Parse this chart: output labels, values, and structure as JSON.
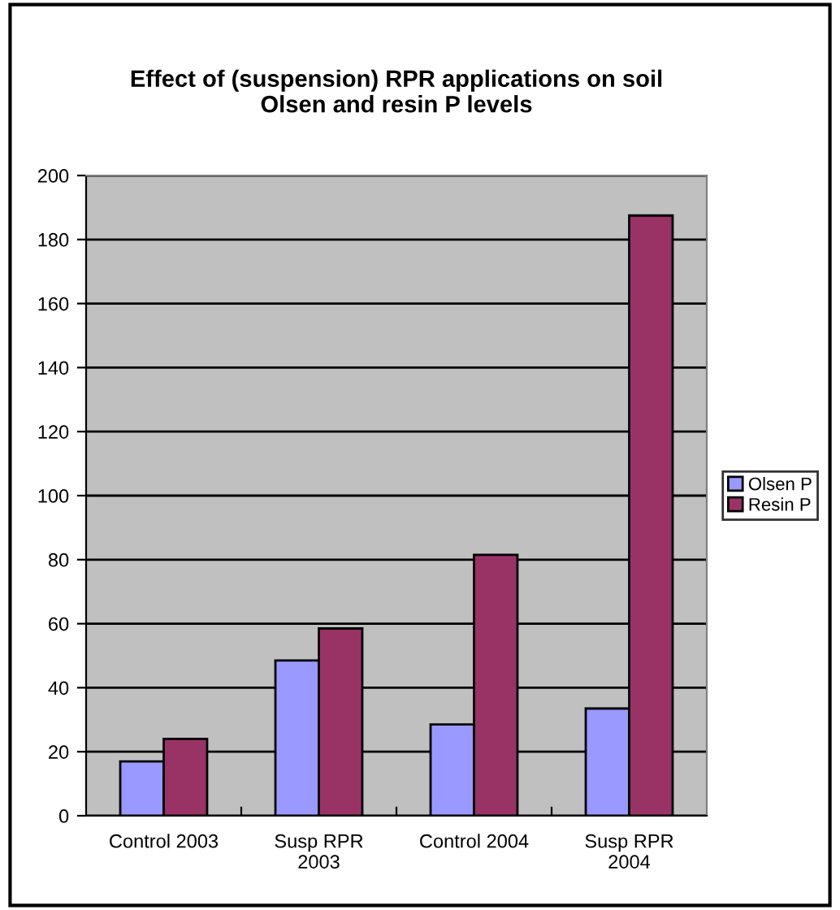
{
  "chart_data": {
    "type": "bar",
    "title": "Effect of (suspension) RPR applications on soil\nOlsen and resin P levels",
    "categories": [
      "Control 2003",
      "Susp RPR\n2003",
      "Control 2004",
      "Susp RPR\n2004"
    ],
    "series": [
      {
        "name": "Olsen P",
        "color": "#9999ff",
        "values": [
          17,
          48.5,
          28.5,
          33.5
        ]
      },
      {
        "name": "Resin P",
        "color": "#993366",
        "values": [
          24,
          58.5,
          81.5,
          187.5
        ]
      }
    ],
    "ylim": [
      0,
      200
    ],
    "yticks": [
      0,
      20,
      40,
      60,
      80,
      100,
      120,
      140,
      160,
      180,
      200
    ],
    "grid": "y",
    "legend": "right"
  }
}
